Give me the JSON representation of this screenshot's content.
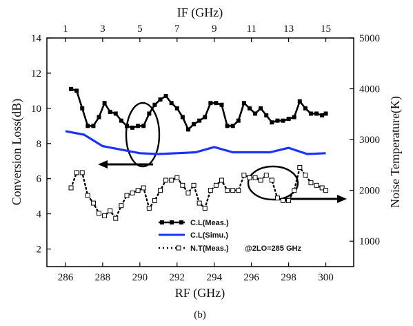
{
  "chart_data": {
    "type": "line",
    "x": [
      286.0,
      286.3,
      286.6,
      286.9,
      287.2,
      287.5,
      287.8,
      288.1,
      288.4,
      288.7,
      289.0,
      289.3,
      289.6,
      289.9,
      290.2,
      290.5,
      290.8,
      291.1,
      291.4,
      291.7,
      292.0,
      292.3,
      292.6,
      292.9,
      293.2,
      293.5,
      293.8,
      294.1,
      294.4,
      294.7,
      295.0,
      295.3,
      295.6,
      295.9,
      296.2,
      296.5,
      296.8,
      297.1,
      297.4,
      297.7,
      298.0,
      298.3,
      298.6,
      298.9,
      299.2,
      299.5,
      299.8,
      300.0
    ],
    "series": [
      {
        "name": "C.L(Meas.)",
        "color": "#000000",
        "axis": "left",
        "marker": "filled-square",
        "x": [
          286.3,
          286.6,
          286.9,
          287.2,
          287.5,
          287.8,
          288.1,
          288.4,
          288.7,
          289.0,
          289.3,
          289.6,
          289.9,
          290.2,
          290.5,
          290.8,
          291.1,
          291.4,
          291.7,
          292.0,
          292.3,
          292.6,
          292.9,
          293.2,
          293.5,
          293.8,
          294.1,
          294.4,
          294.7,
          295.0,
          295.3,
          295.6,
          295.9,
          296.2,
          296.5,
          296.8,
          297.1,
          297.4,
          297.7,
          298.0,
          298.3,
          298.6,
          298.9,
          299.2,
          299.5,
          299.8,
          300.0
        ],
        "values": [
          11.1,
          11.0,
          10.0,
          9.0,
          9.0,
          9.5,
          10.3,
          9.8,
          9.7,
          9.3,
          9.0,
          8.9,
          9.0,
          9.0,
          9.7,
          10.2,
          10.5,
          10.7,
          10.3,
          10.0,
          9.5,
          8.8,
          9.1,
          9.3,
          9.5,
          10.3,
          10.3,
          10.2,
          9.0,
          9.0,
          9.3,
          10.3,
          10.0,
          9.7,
          10.0,
          9.6,
          9.2,
          9.3,
          9.3,
          9.4,
          9.5,
          10.4,
          10.0,
          9.7,
          9.7,
          9.6,
          9.7
        ]
      },
      {
        "name": "C.L(Simu.)",
        "color": "#1a33ff",
        "axis": "left",
        "marker": "none",
        "x": [
          286.0,
          287.0,
          288.0,
          289.0,
          290.0,
          291.0,
          292.0,
          293.0,
          294.0,
          295.0,
          296.0,
          297.0,
          298.0,
          299.0,
          300.0
        ],
        "values": [
          8.7,
          8.5,
          7.85,
          7.65,
          7.45,
          7.4,
          7.45,
          7.5,
          7.8,
          7.5,
          7.5,
          7.5,
          7.75,
          7.4,
          7.45
        ]
      },
      {
        "name": "N.T(Meas.)",
        "color": "#000000",
        "axis": "right",
        "marker": "open-square",
        "linestyle": "dotted",
        "x": [
          286.3,
          286.6,
          286.9,
          287.2,
          287.5,
          287.8,
          288.1,
          288.4,
          288.7,
          289.0,
          289.3,
          289.6,
          289.9,
          290.2,
          290.5,
          290.8,
          291.1,
          291.4,
          291.7,
          292.0,
          292.3,
          292.6,
          292.9,
          293.2,
          293.5,
          293.8,
          294.1,
          294.4,
          294.7,
          295.0,
          295.3,
          295.6,
          295.9,
          296.2,
          296.5,
          296.8,
          297.1,
          297.4,
          297.7,
          298.0,
          298.3,
          298.6,
          298.9,
          299.2,
          299.5,
          299.8,
          300.0
        ],
        "values": [
          2050,
          2350,
          2350,
          1900,
          1750,
          1550,
          1500,
          1600,
          1450,
          1700,
          1900,
          1950,
          2000,
          2050,
          1650,
          1800,
          2000,
          2200,
          2200,
          2250,
          2100,
          1950,
          2100,
          1750,
          1650,
          2000,
          2100,
          2200,
          2000,
          2000,
          2000,
          2300,
          2250,
          2250,
          2200,
          2300,
          2200,
          1850,
          1800,
          1800,
          2000,
          2450,
          2300,
          2150,
          2100,
          2050,
          2000
        ]
      }
    ],
    "xlabel": "RF (GHz)",
    "x2label": "IF (GHz)",
    "ylabel": "Conversion Loss(dB)",
    "y2label": "Noise Temperature(K)",
    "xlim": [
      285,
      301.5
    ],
    "ylim": [
      1,
      14
    ],
    "y2lim": [
      500,
      5000
    ],
    "xticks": [
      286,
      288,
      290,
      292,
      294,
      296,
      298,
      300
    ],
    "x2ticks": [
      1,
      3,
      5,
      7,
      9,
      11,
      13,
      15
    ],
    "yticks": [
      2,
      4,
      6,
      8,
      10,
      12,
      14
    ],
    "y2ticks": [
      1000,
      2000,
      3000,
      4000,
      5000
    ],
    "grid": false,
    "legend_position": "bottom-center",
    "annotation": "@2LO=285 GHz",
    "caption": "(b)"
  }
}
